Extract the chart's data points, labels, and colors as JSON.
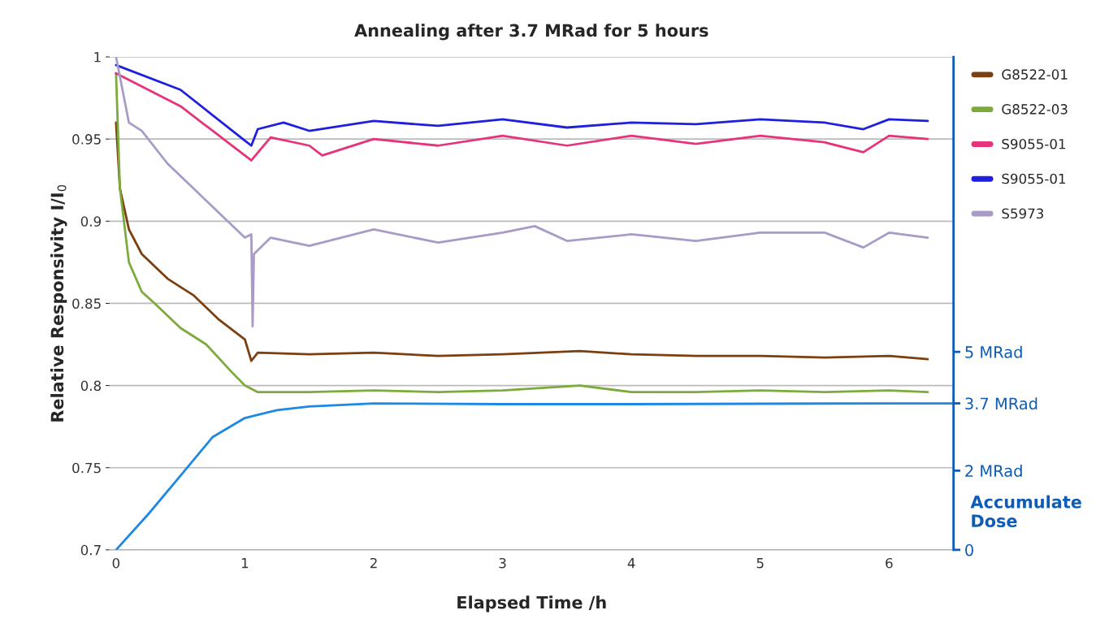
{
  "chart_data": {
    "type": "line",
    "title": "Annealing after 3.7 MRad for 5 hours",
    "xlabel": "Elapsed Time /h",
    "ylabel": "Relative Responsivity I/I$_{0}$",
    "y2label": "Accumulate Dose",
    "xlim": [
      -0.05,
      6.5
    ],
    "xticks": [
      0,
      1,
      2,
      3,
      4,
      5,
      6
    ],
    "ylim": [
      0.7,
      1
    ],
    "yticks": [
      0.7,
      0.75,
      0.8,
      0.85,
      0.9,
      0.95,
      1
    ],
    "y2lim": [
      0,
      12.45
    ],
    "y2ticks": [
      {
        "value": 0,
        "label": "0"
      },
      {
        "value": 2,
        "label": "2 MRad"
      },
      {
        "value": 3.7,
        "label": "3.7 MRad"
      },
      {
        "value": 5,
        "label": "5 MRad"
      }
    ],
    "grid": "y",
    "legend": "right",
    "line_style": "solid",
    "series": [
      {
        "name": "G8522-01",
        "color": "#7b3f10",
        "x": [
          0,
          0.03,
          0.1,
          0.2,
          0.4,
          0.6,
          0.8,
          1.0,
          1.05,
          1.1,
          1.5,
          2,
          2.5,
          3,
          3.6,
          4,
          4.5,
          5,
          5.5,
          6,
          6.3
        ],
        "values": [
          0.96,
          0.92,
          0.895,
          0.88,
          0.865,
          0.855,
          0.84,
          0.828,
          0.815,
          0.82,
          0.819,
          0.82,
          0.818,
          0.819,
          0.821,
          0.819,
          0.818,
          0.818,
          0.817,
          0.818,
          0.816
        ]
      },
      {
        "name": "G8522-03",
        "color": "#7cab3c",
        "x": [
          0,
          0.03,
          0.1,
          0.2,
          0.3,
          0.5,
          0.7,
          0.9,
          1.0,
          1.1,
          1.5,
          2,
          2.5,
          3,
          3.6,
          4,
          4.5,
          5,
          5.5,
          6,
          6.3
        ],
        "values": [
          0.99,
          0.92,
          0.875,
          0.857,
          0.85,
          0.835,
          0.825,
          0.808,
          0.8,
          0.796,
          0.796,
          0.797,
          0.796,
          0.797,
          0.8,
          0.796,
          0.796,
          0.797,
          0.796,
          0.797,
          0.796
        ]
      },
      {
        "name": "S9055-01",
        "color": "#e6337a",
        "x": [
          0,
          0.5,
          1.0,
          1.05,
          1.2,
          1.5,
          1.6,
          2,
          2.5,
          3,
          3.5,
          4,
          4.5,
          5,
          5.5,
          5.8,
          6,
          6.3
        ],
        "values": [
          0.99,
          0.97,
          0.94,
          0.937,
          0.951,
          0.946,
          0.94,
          0.95,
          0.946,
          0.952,
          0.946,
          0.952,
          0.947,
          0.952,
          0.948,
          0.942,
          0.952,
          0.95
        ]
      },
      {
        "name": "S9055-01",
        "color": "#1f1fe0",
        "x": [
          0,
          0.5,
          1.0,
          1.05,
          1.1,
          1.3,
          1.5,
          2,
          2.5,
          3,
          3.5,
          4,
          4.5,
          5,
          5.5,
          5.8,
          6,
          6.3
        ],
        "values": [
          0.995,
          0.98,
          0.949,
          0.946,
          0.956,
          0.96,
          0.955,
          0.961,
          0.958,
          0.962,
          0.957,
          0.96,
          0.959,
          0.962,
          0.96,
          0.956,
          0.962,
          0.961
        ]
      },
      {
        "name": "S5973",
        "color": "#a99bc7",
        "x": [
          0,
          0.1,
          0.2,
          0.4,
          0.6,
          0.8,
          1.0,
          1.05,
          1.06,
          1.07,
          1.2,
          1.5,
          2,
          2.5,
          3,
          3.25,
          3.5,
          4,
          4.5,
          5,
          5.5,
          5.8,
          6,
          6.3
        ],
        "values": [
          1.0,
          0.96,
          0.955,
          0.935,
          0.92,
          0.905,
          0.89,
          0.892,
          0.836,
          0.88,
          0.89,
          0.885,
          0.895,
          0.887,
          0.893,
          0.897,
          0.888,
          0.892,
          0.888,
          0.893,
          0.893,
          0.884,
          0.893,
          0.89
        ]
      },
      {
        "axis": "y2",
        "color": "#1e88e5",
        "x": [
          0,
          0.25,
          0.5,
          0.75,
          1.0,
          1.25,
          1.5,
          2,
          3,
          4,
          5,
          6,
          6.5
        ],
        "values": [
          0,
          0.9,
          1.87,
          2.85,
          3.33,
          3.53,
          3.62,
          3.7,
          3.68,
          3.68,
          3.69,
          3.7,
          3.7
        ]
      }
    ]
  }
}
